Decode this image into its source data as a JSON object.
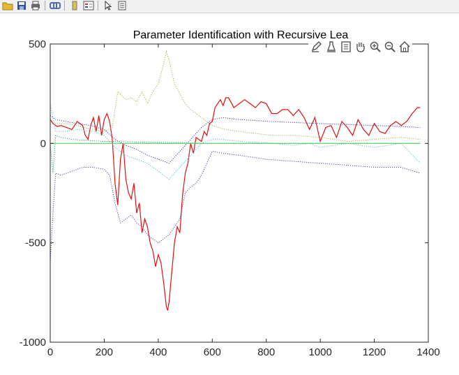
{
  "toolbar": {
    "buttons": [
      {
        "name": "open-file-icon",
        "color": "#e8b83a"
      },
      {
        "name": "save-icon",
        "color": "#2e4fa3"
      },
      {
        "name": "print-icon",
        "color": "#6a6a6a"
      },
      {
        "name": "link-icon",
        "color": "#4a6fb0"
      },
      {
        "name": "colorbar-icon",
        "color": "#d9c24a"
      },
      {
        "name": "legend-icon",
        "color": "#c0392b"
      },
      {
        "name": "arrow-pointer-icon",
        "color": "#333333"
      },
      {
        "name": "property-inspector-icon",
        "color": "#555555"
      }
    ]
  },
  "axes_toolbar": {
    "buttons": [
      "brush-edit-icon",
      "data-cursor-icon",
      "export-icon",
      "pan-hand-icon",
      "zoom-in-icon",
      "zoom-out-icon",
      "home-icon"
    ]
  },
  "chart_data": {
    "type": "line",
    "title": "Parameter Identification with Recursive Lea",
    "xlabel": "",
    "ylabel": "",
    "xlim": [
      0,
      1400
    ],
    "ylim": [
      -1000,
      500
    ],
    "xticks": [
      "0",
      "200",
      "400",
      "600",
      "800",
      "1000",
      "1200",
      "1400"
    ],
    "yticks": [
      "500",
      "0",
      "-500",
      "-1000"
    ],
    "grid": false,
    "series": [
      {
        "color": "#e01010",
        "style": "solid",
        "x": [
          0,
          10,
          25,
          40,
          60,
          80,
          100,
          120,
          130,
          140,
          150,
          160,
          170,
          180,
          190,
          200,
          210,
          220,
          230,
          240,
          250,
          260,
          270,
          280,
          290,
          300,
          310,
          320,
          330,
          340,
          350,
          360,
          370,
          380,
          390,
          400,
          410,
          420,
          425,
          430,
          435,
          440,
          450,
          460,
          470,
          480,
          490,
          500,
          510,
          520,
          530,
          540,
          550,
          560,
          570,
          580,
          590,
          600,
          610,
          620,
          630,
          640,
          650,
          660,
          680,
          700,
          720,
          740,
          760,
          780,
          800,
          820,
          840,
          860,
          880,
          900,
          920,
          940,
          960,
          980,
          1000,
          1020,
          1040,
          1060,
          1080,
          1100,
          1120,
          1140,
          1160,
          1180,
          1200,
          1220,
          1240,
          1260,
          1280,
          1300,
          1320,
          1340,
          1360,
          1370
        ],
        "y": [
          120,
          100,
          85,
          90,
          80,
          70,
          110,
          90,
          40,
          20,
          90,
          130,
          60,
          140,
          40,
          120,
          150,
          110,
          20,
          -200,
          -310,
          -80,
          0,
          -180,
          -250,
          -280,
          -200,
          -350,
          -300,
          -450,
          -380,
          -420,
          -500,
          -540,
          -620,
          -560,
          -600,
          -700,
          -760,
          -820,
          -840,
          -800,
          -650,
          -500,
          -420,
          -450,
          -260,
          -150,
          -100,
          0,
          -50,
          30,
          20,
          10,
          60,
          40,
          100,
          110,
          180,
          200,
          220,
          190,
          230,
          230,
          180,
          200,
          220,
          200,
          180,
          210,
          200,
          150,
          150,
          170,
          170,
          140,
          170,
          130,
          70,
          130,
          10,
          80,
          90,
          30,
          110,
          80,
          40,
          120,
          70,
          40,
          100,
          60,
          50,
          90,
          110,
          90,
          110,
          150,
          180,
          180
        ]
      },
      {
        "color": "#b5a64a",
        "style": "dotted",
        "x": [
          0,
          20,
          60,
          100,
          150,
          200,
          230,
          250,
          280,
          300,
          320,
          340,
          360,
          380,
          400,
          420,
          430,
          440,
          460,
          480,
          500,
          520,
          540,
          560,
          580,
          600,
          650,
          700,
          760,
          820,
          900,
          1000,
          1100,
          1200,
          1300,
          1370
        ],
        "y": [
          120,
          100,
          100,
          90,
          70,
          60,
          80,
          260,
          220,
          230,
          210,
          260,
          200,
          260,
          300,
          400,
          460,
          420,
          300,
          250,
          200,
          170,
          150,
          130,
          110,
          90,
          70,
          60,
          50,
          40,
          40,
          30,
          10,
          20,
          30,
          20
        ]
      },
      {
        "color": "#5a3fa0",
        "style": "dotted",
        "x": [
          0,
          10,
          20,
          40,
          80,
          120,
          160,
          200,
          220,
          240,
          260,
          280,
          300,
          320,
          340,
          360,
          380,
          400,
          420,
          440,
          460,
          480,
          500,
          520,
          540,
          560,
          600,
          640,
          700,
          800,
          900,
          1000,
          1100,
          1200,
          1300,
          1370
        ],
        "y": [
          -600,
          -350,
          -150,
          -160,
          -140,
          -120,
          -120,
          -130,
          -160,
          -300,
          -400,
          -380,
          -360,
          -400,
          -420,
          -460,
          -480,
          -500,
          -480,
          -460,
          -420,
          -380,
          -250,
          -220,
          -200,
          -160,
          -40,
          -50,
          -60,
          -80,
          -90,
          -100,
          -110,
          -120,
          -120,
          -150
        ]
      },
      {
        "color": "#3b3bb0",
        "style": "dotted",
        "x": [
          0,
          20,
          60,
          100,
          150,
          200,
          240,
          280,
          320,
          360,
          400,
          440,
          480,
          520,
          560,
          600,
          640,
          700,
          760,
          820,
          900,
          1000,
          1100,
          1200,
          1300,
          1370
        ],
        "y": [
          140,
          120,
          110,
          100,
          90,
          70,
          20,
          -10,
          -30,
          -60,
          -80,
          -100,
          -40,
          20,
          80,
          120,
          130,
          120,
          115,
          110,
          105,
          100,
          95,
          90,
          85,
          80
        ]
      },
      {
        "color": "#4ec1d6",
        "style": "dotted",
        "x": [
          0,
          20,
          60,
          100,
          160,
          200,
          240,
          280,
          320,
          360,
          400,
          440,
          480,
          520,
          560,
          600,
          640,
          700,
          760,
          820,
          900,
          960,
          1000,
          1100,
          1200,
          1300,
          1370
        ],
        "y": [
          200,
          60,
          60,
          70,
          60,
          40,
          -20,
          -60,
          -80,
          -100,
          -140,
          -180,
          -120,
          -60,
          0,
          20,
          20,
          10,
          5,
          0,
          -10,
          0,
          -20,
          0,
          -20,
          0,
          -100
        ]
      },
      {
        "color": "#2e9b6e",
        "style": "dotted",
        "x": [
          0,
          10,
          20,
          40,
          80,
          200,
          400,
          600,
          800,
          1000,
          1200,
          1370
        ],
        "y": [
          0,
          -150,
          40,
          30,
          20,
          10,
          5,
          0,
          0,
          0,
          0,
          0
        ]
      },
      {
        "color": "#5ad15a",
        "style": "solid",
        "x": [
          0,
          1370
        ],
        "y": [
          0,
          0
        ]
      }
    ]
  }
}
